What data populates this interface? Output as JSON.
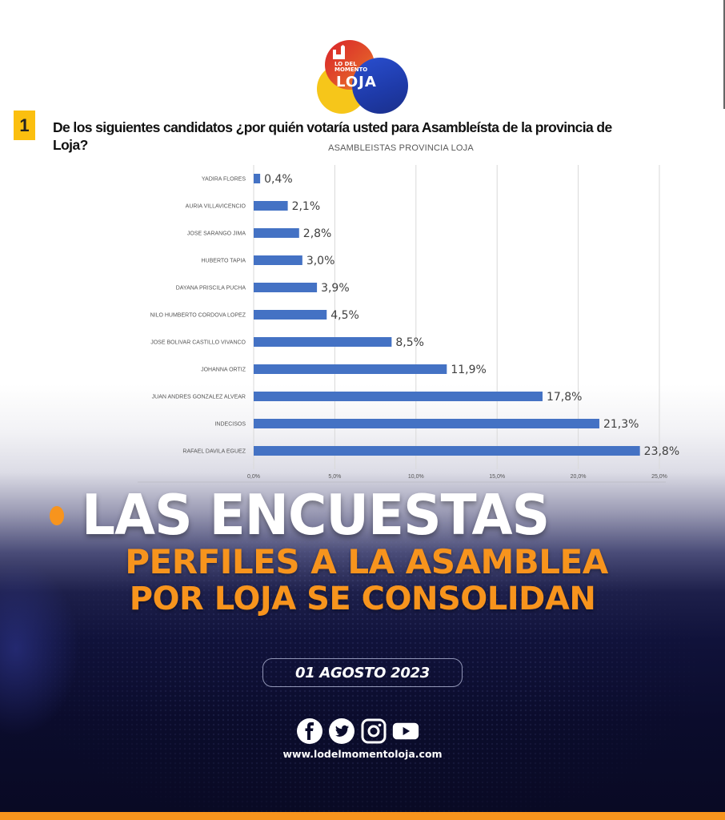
{
  "brand": {
    "logo_small_line1": "LO DEL",
    "logo_small_line2": "MOMENTO",
    "logo_big": "LOJA"
  },
  "question": {
    "number": "1",
    "text": "De los siguientes candidatos ¿por quién votaría usted para Asambleísta de la provincia de Loja?"
  },
  "chart_data": {
    "type": "bar",
    "orientation": "horizontal",
    "title": "ASAMBLEISTAS PROVINCIA LOJA",
    "xlabel": "",
    "ylabel": "",
    "categories": [
      "YADIRA FLORES",
      "AURIA VILLAVICENCIO",
      "JOSE SARANGO JIMA",
      "HUBERTO TAPIA",
      "DAYANA PRISCILA PUCHA",
      "NILO HUMBERTO CORDOVA LOPEZ",
      "JOSE BOLIVAR CASTILLO VIVANCO",
      "JOHANNA ORTIZ",
      "JUAN ANDRES GONZALEZ ALVEAR",
      "INDECISOS",
      "RAFAEL DAVILA EGUEZ"
    ],
    "values": [
      0.4,
      2.1,
      2.8,
      3.0,
      3.9,
      4.5,
      8.5,
      11.9,
      17.8,
      21.3,
      23.8
    ],
    "value_labels": [
      "0,4%",
      "2,1%",
      "2,8%",
      "3,0%",
      "3,9%",
      "4,5%",
      "8,5%",
      "11,9%",
      "17,8%",
      "21,3%",
      "23,8%"
    ],
    "xlim": [
      0,
      25
    ],
    "xticks": [
      0,
      5,
      10,
      15,
      20,
      25
    ],
    "xtick_labels": [
      "0,0%",
      "5,0%",
      "10,0%",
      "15,0%",
      "20,0%",
      "25,0%"
    ],
    "grid": true,
    "legend": "none",
    "bar_color": "#4472c4"
  },
  "headline": {
    "line1": "LAS ENCUESTAS",
    "line2": "PERFILES A LA ASAMBLEA",
    "line3": "POR LOJA SE CONSOLIDAN"
  },
  "date": "01 AGOSTO 2023",
  "social": [
    "facebook-icon",
    "twitter-icon",
    "instagram-icon",
    "youtube-icon"
  ],
  "website": "www.lodelmomentoloja.com",
  "colors": {
    "accent_orange": "#f7941d",
    "number_badge": "#fbbf0f",
    "navy": "#0b0c2c"
  }
}
